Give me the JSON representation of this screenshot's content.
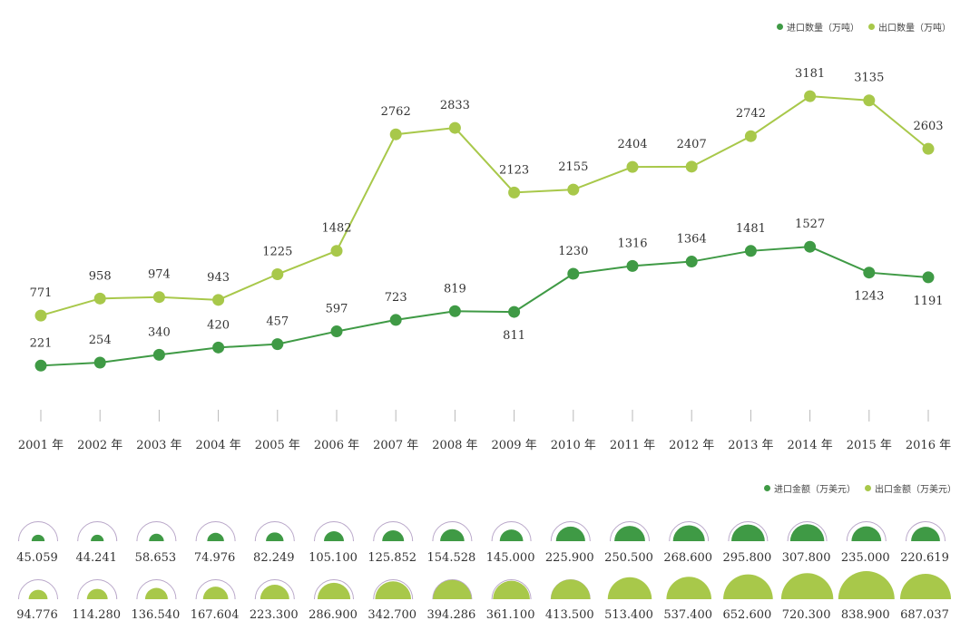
{
  "chart_data": [
    {
      "type": "line",
      "categories": [
        "2001 年",
        "2002 年",
        "2003 年",
        "2004 年",
        "2005 年",
        "2006 年",
        "2007 年",
        "2008 年",
        "2009 年",
        "2010 年",
        "2011 年",
        "2012 年",
        "2013 年",
        "2014 年",
        "2015 年",
        "2016 年"
      ],
      "series": [
        {
          "name": "进口数量（万吨）",
          "color": "#3f9a45",
          "values": [
            221,
            254,
            340,
            420,
            457,
            597,
            723,
            819,
            811,
            1230,
            1316,
            1364,
            1481,
            1527,
            1243,
            1191
          ]
        },
        {
          "name": "出口数量（万吨）",
          "color": "#a8c84a",
          "values": [
            771,
            958,
            974,
            943,
            1225,
            1482,
            2762,
            2833,
            2123,
            2155,
            2404,
            2407,
            2742,
            3181,
            3135,
            2603
          ]
        }
      ],
      "legend_position": "top-right",
      "grid": false
    },
    {
      "type": "bubble-semicircle",
      "categories": [
        "2001 年",
        "2002 年",
        "2003 年",
        "2004 年",
        "2005 年",
        "2006 年",
        "2007 年",
        "2008 年",
        "2009 年",
        "2010 年",
        "2011 年",
        "2012 年",
        "2013 年",
        "2014 年",
        "2015 年",
        "2016 年"
      ],
      "series": [
        {
          "name": "进口金额（万美元）",
          "color": "#3f9a45",
          "labels": [
            "45.059",
            "44.241",
            "58.653",
            "74.976",
            "82.249",
            "105.100",
            "125.852",
            "154.528",
            "145.000",
            "225.900",
            "250.500",
            "268.600",
            "295.800",
            "307.800",
            "235.000",
            "220.619"
          ],
          "values": [
            45.059,
            44.241,
            58.653,
            74.976,
            82.249,
            105.1,
            125.852,
            154.528,
            145.0,
            225.9,
            250.5,
            268.6,
            295.8,
            307.8,
            235.0,
            220.619
          ]
        },
        {
          "name": "出口金额（万美元）",
          "color": "#a8c84a",
          "labels": [
            "94.776",
            "114.280",
            "136.540",
            "167.604",
            "223.300",
            "286.900",
            "342.700",
            "394.286",
            "361.100",
            "413.500",
            "513.400",
            "537.400",
            "652.600",
            "720.300",
            "838.900",
            "687.037"
          ],
          "values": [
            94.776,
            114.28,
            136.54,
            167.604,
            223.3,
            286.9,
            342.7,
            394.286,
            361.1,
            413.5,
            513.4,
            537.4,
            652.6,
            720.3,
            838.9,
            687.037
          ]
        }
      ],
      "legend_position": "top-right"
    }
  ]
}
